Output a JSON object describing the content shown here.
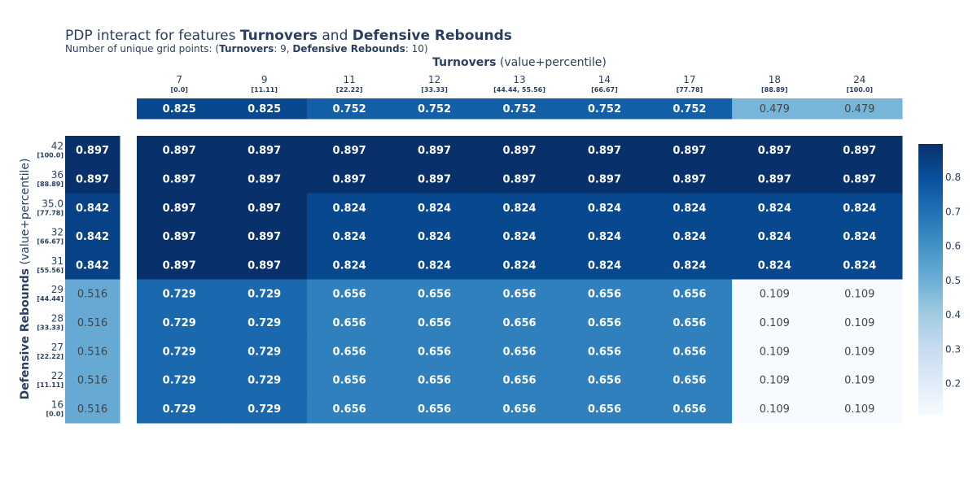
{
  "title": {
    "prefix": "PDP interact for features ",
    "feature_x": "Turnovers",
    "connector": " and ",
    "feature_y": "Defensive Rebounds"
  },
  "subtitle": {
    "prefix": "Number of unique grid points: (",
    "feature_x": "Turnovers",
    "x_count_text": ": 9, ",
    "feature_y": "Defensive Rebounds",
    "y_count_text": ": 10)"
  },
  "chart_data": {
    "type": "heatmap",
    "xlabel_bold": "Turnovers",
    "xlabel_suffix": " (value+percentile)",
    "ylabel_bold": "Defensive Rebounds",
    "ylabel_suffix": " (value+percentile)",
    "x_ticks": [
      "7",
      "9",
      "11",
      "12",
      "13",
      "14",
      "17",
      "18",
      "24"
    ],
    "x_percentiles": [
      "[0.0]",
      "[11.11]",
      "[22.22]",
      "[33.33]",
      "[44.44, 55.56]",
      "[66.67]",
      "[77.78]",
      "[88.89]",
      "[100.0]"
    ],
    "y_ticks": [
      "42",
      "36",
      "35.0",
      "32",
      "31",
      "29",
      "28",
      "27",
      "22",
      "16"
    ],
    "y_percentiles": [
      "[100.0]",
      "[88.89]",
      "[77.78]",
      "[66.67]",
      "[55.56]",
      "[44.44]",
      "[33.33]",
      "[22.22]",
      "[11.11]",
      "[0.0]"
    ],
    "top_marginal": [
      0.825,
      0.825,
      0.752,
      0.752,
      0.752,
      0.752,
      0.752,
      0.479,
      0.479
    ],
    "left_marginal": [
      0.897,
      0.897,
      0.842,
      0.842,
      0.842,
      0.516,
      0.516,
      0.516,
      0.516,
      0.516
    ],
    "matrix": [
      [
        0.897,
        0.897,
        0.897,
        0.897,
        0.897,
        0.897,
        0.897,
        0.897,
        0.897
      ],
      [
        0.897,
        0.897,
        0.897,
        0.897,
        0.897,
        0.897,
        0.897,
        0.897,
        0.897
      ],
      [
        0.897,
        0.897,
        0.824,
        0.824,
        0.824,
        0.824,
        0.824,
        0.824,
        0.824
      ],
      [
        0.897,
        0.897,
        0.824,
        0.824,
        0.824,
        0.824,
        0.824,
        0.824,
        0.824
      ],
      [
        0.897,
        0.897,
        0.824,
        0.824,
        0.824,
        0.824,
        0.824,
        0.824,
        0.824
      ],
      [
        0.729,
        0.729,
        0.656,
        0.656,
        0.656,
        0.656,
        0.656,
        0.109,
        0.109
      ],
      [
        0.729,
        0.729,
        0.656,
        0.656,
        0.656,
        0.656,
        0.656,
        0.109,
        0.109
      ],
      [
        0.729,
        0.729,
        0.656,
        0.656,
        0.656,
        0.656,
        0.656,
        0.109,
        0.109
      ],
      [
        0.729,
        0.729,
        0.656,
        0.656,
        0.656,
        0.656,
        0.656,
        0.109,
        0.109
      ],
      [
        0.729,
        0.729,
        0.656,
        0.656,
        0.656,
        0.656,
        0.656,
        0.109,
        0.109
      ]
    ],
    "colorscale": "Blues",
    "colorbar_ticks": [
      "0.2",
      "0.3",
      "0.4",
      "0.5",
      "0.6",
      "0.7",
      "0.8"
    ],
    "colorbar_range": [
      0.109,
      0.897
    ],
    "colors": {
      "text": "#2a3f5f",
      "scale_stops": [
        "#f7fbff",
        "#deebf7",
        "#c6dbef",
        "#9ecae1",
        "#6baed6",
        "#4292c6",
        "#2171b5",
        "#08519c",
        "#08306b"
      ]
    }
  }
}
